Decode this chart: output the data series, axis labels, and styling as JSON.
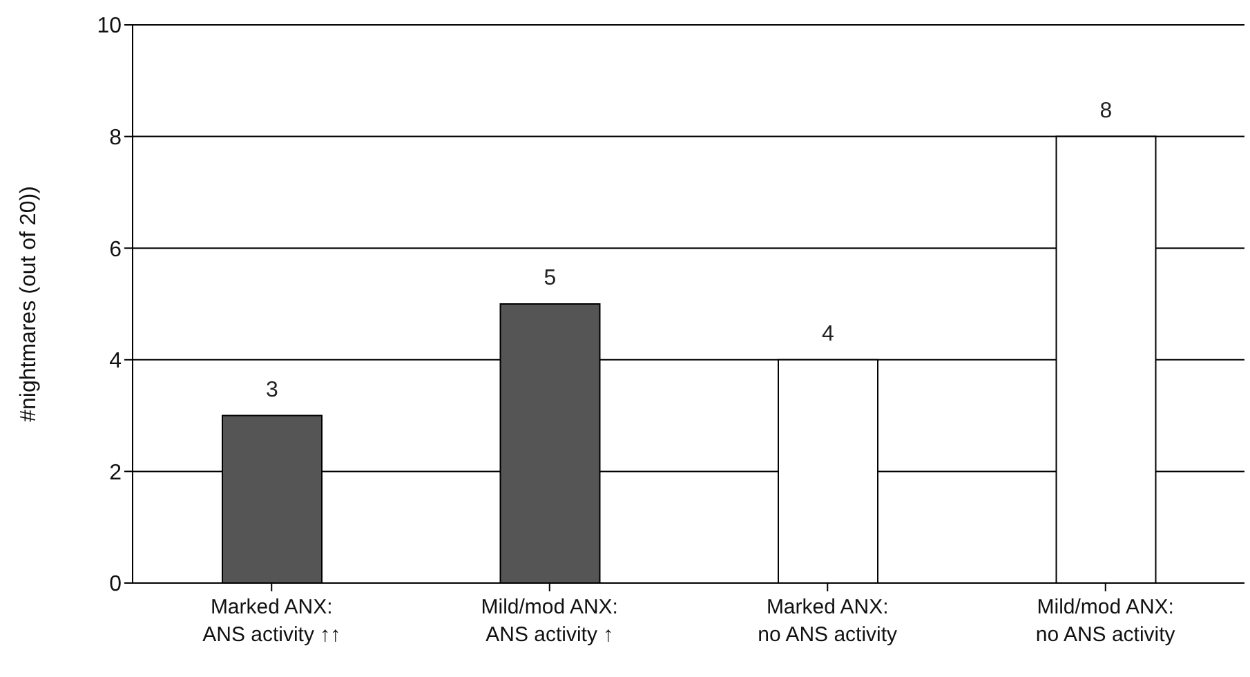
{
  "chart_data": {
    "type": "bar",
    "ylabel": "#nightmares (out of 20))",
    "categories": [
      "Marked ANX:\nANS activity ↑↑",
      "Mild/mod ANX:\nANS activity ↑",
      "Marked ANX:\nno ANS activity",
      "Mild/mod ANX:\nno ANS activity"
    ],
    "values": [
      3,
      5,
      4,
      8
    ],
    "colors": [
      "#555555",
      "#555555",
      "#ffffff",
      "#ffffff"
    ],
    "ylim": [
      0,
      10
    ],
    "yticks": [
      0,
      2,
      4,
      6,
      8,
      10
    ],
    "grid": "y",
    "data_labels": true
  }
}
